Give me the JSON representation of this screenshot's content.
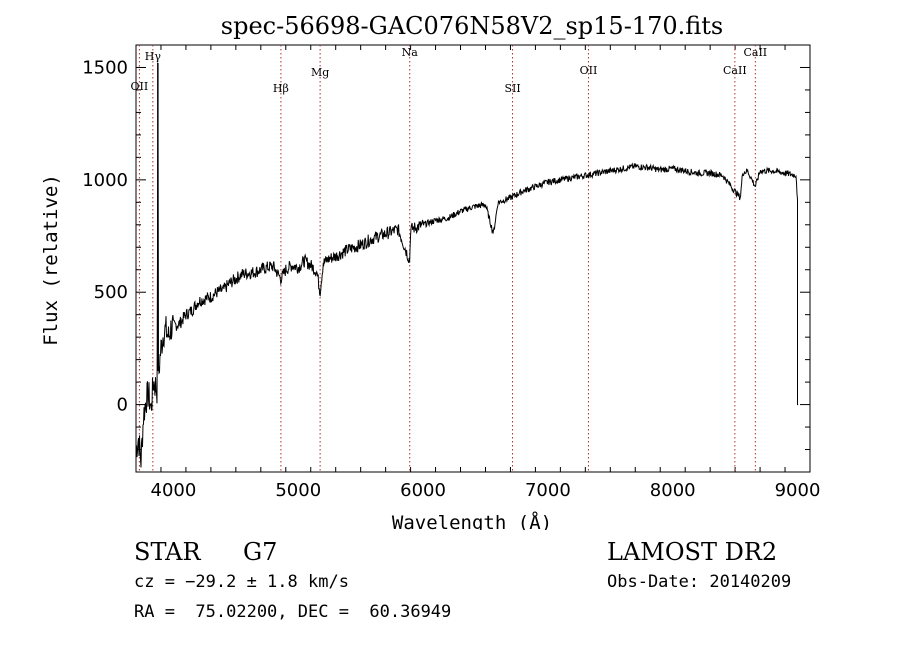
{
  "chart_data": {
    "type": "line",
    "title": "spec-56698-GAC076N58V2_sp15-170.fits",
    "xlabel": "Wavelength (Å)",
    "ylabel": "Flux (relative)",
    "xlim": [
      3700,
      9100
    ],
    "ylim": [
      -300,
      1600
    ],
    "xticks": [
      4000,
      5000,
      6000,
      7000,
      8000,
      9000
    ],
    "yticks": [
      0,
      500,
      1000,
      1500
    ],
    "grid": false,
    "line_color": "#000000",
    "marker_line_color": "#b03030",
    "series": [
      {
        "x": [
          3700,
          3720,
          3740,
          3760,
          3780,
          3800,
          3820,
          3840,
          3860,
          3870,
          3875,
          3880,
          3885,
          3890,
          3900,
          3920,
          3940,
          3960,
          3980,
          4000,
          4050,
          4100,
          4150,
          4200,
          4250,
          4300,
          4350,
          4400,
          4450,
          4500,
          4550,
          4600,
          4650,
          4700,
          4750,
          4800,
          4861,
          4900,
          4950,
          5000,
          5050,
          5100,
          5150,
          5175,
          5200,
          5250,
          5300,
          5400,
          5500,
          5600,
          5700,
          5800,
          5893,
          5900,
          6000,
          6100,
          6200,
          6300,
          6400,
          6500,
          6563,
          6600,
          6700,
          6800,
          6900,
          7000,
          7100,
          7200,
          7300,
          7400,
          7500,
          7600,
          7700,
          7800,
          7900,
          8000,
          8100,
          8200,
          8300,
          8400,
          8498,
          8542,
          8560,
          8600,
          8662,
          8700,
          8800,
          8900,
          8990,
          9000,
          9005
        ],
        "y": [
          -200,
          -150,
          -250,
          -50,
          20,
          50,
          -20,
          100,
          80,
          60,
          1500,
          120,
          150,
          200,
          250,
          320,
          330,
          300,
          340,
          350,
          360,
          400,
          420,
          460,
          470,
          480,
          500,
          510,
          540,
          560,
          580,
          585,
          590,
          600,
          610,
          615,
          560,
          600,
          620,
          610,
          640,
          620,
          590,
          500,
          630,
          650,
          660,
          690,
          710,
          740,
          760,
          780,
          640,
          780,
          800,
          820,
          830,
          860,
          880,
          890,
          760,
          900,
          920,
          950,
          970,
          990,
          1000,
          1010,
          1020,
          1030,
          1040,
          1050,
          1060,
          1055,
          1045,
          1050,
          1040,
          1030,
          1030,
          1020,
          950,
          920,
          1030,
          1040,
          970,
          1040,
          1040,
          1030,
          1020,
          900,
          0
        ]
      }
    ],
    "lines": [
      {
        "label": "OII",
        "x": 3727
      },
      {
        "label": "Hγ",
        "x": 3835
      },
      {
        "label": "Hβ",
        "x": 4861
      },
      {
        "label": "Mg",
        "x": 5175
      },
      {
        "label": "Na",
        "x": 5893
      },
      {
        "label": "OII",
        "x": 7325
      },
      {
        "label": "SII",
        "x": 6717
      },
      {
        "label": "CaII",
        "x": 8498
      },
      {
        "label": "CaII",
        "x": 8662
      }
    ]
  },
  "info": {
    "class_label": "STAR",
    "subclass": "G7",
    "survey": "LAMOST DR2",
    "cz": "cz = −29.2 ± 1.8 km/s",
    "obs_date": "Obs-Date: 20140209",
    "coords": "RA =  75.02200, DEC =  60.36949"
  }
}
